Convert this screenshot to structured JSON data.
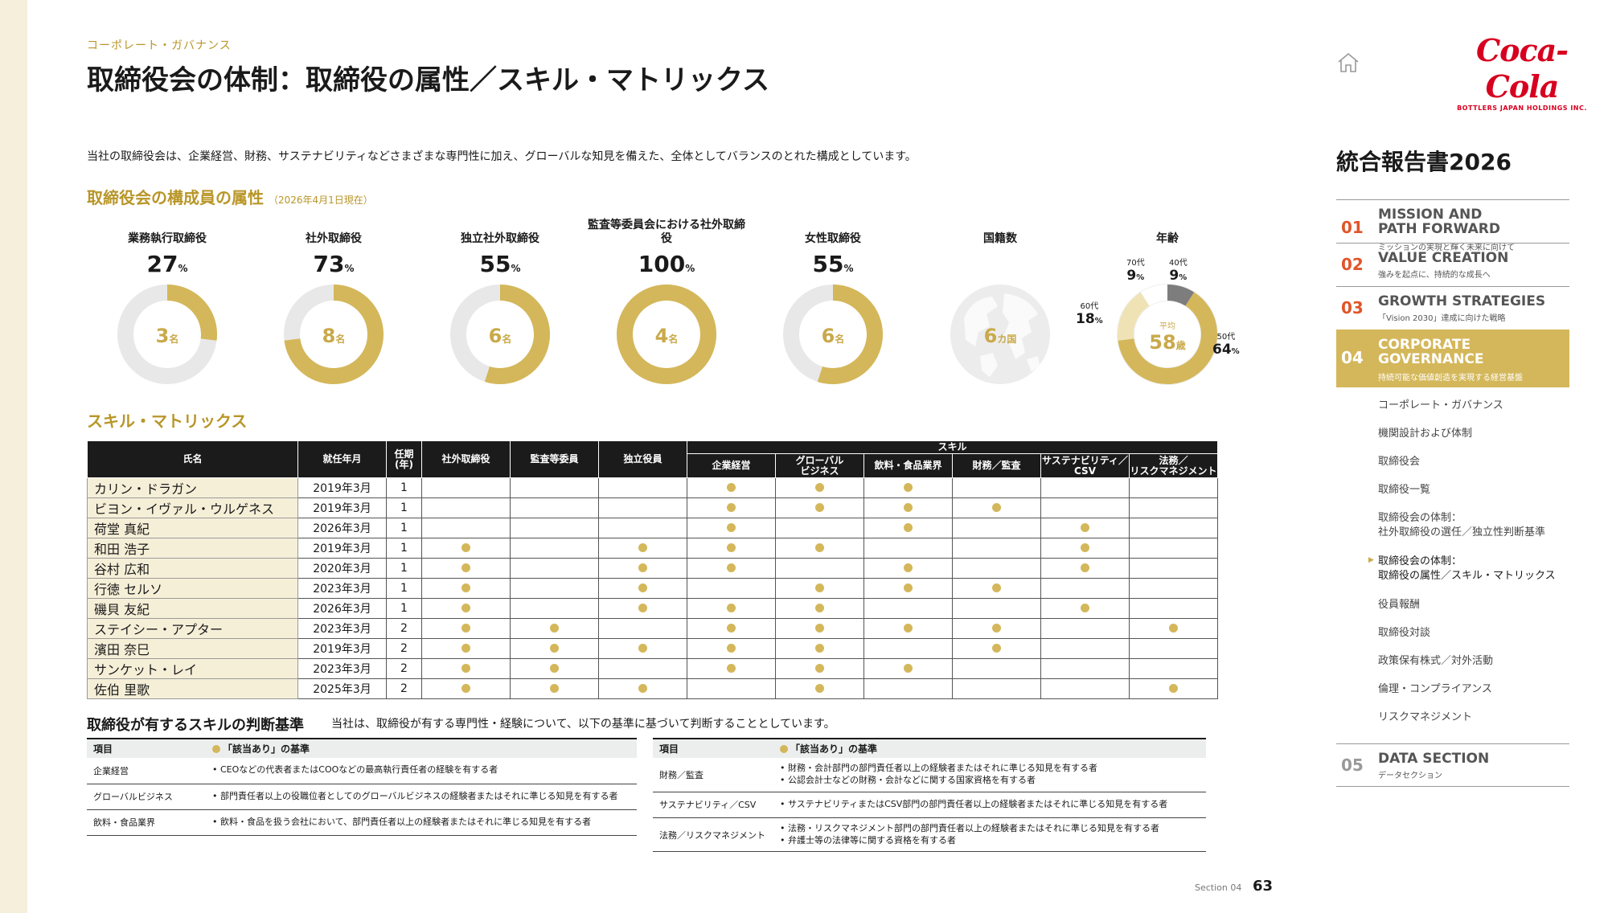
{
  "header": {
    "section_label": "コーポレート・ガバナンス",
    "title": "取締役会の体制：取締役の属性／スキル・マトリックス",
    "intro": "当社の取締役会は、企業経営、財務、サステナビリティなどさまざまな専門性に加え、グローバルな知見を備えた、全体としてバランスのとれた構成としています。"
  },
  "attributes": {
    "title": "取締役会の構成員の属性",
    "as_of": "（2026年4月1日現在）",
    "items": [
      {
        "label": "業務執行取締役",
        "percent": "27",
        "count": "3",
        "unit": "名",
        "fraction": 0.27
      },
      {
        "label": "社外取締役",
        "percent": "73",
        "count": "8",
        "unit": "名",
        "fraction": 0.73
      },
      {
        "label": "独立社外取締役",
        "percent": "55",
        "count": "6",
        "unit": "名",
        "fraction": 0.55
      },
      {
        "label": "監査等委員会における社外取締役",
        "percent": "100",
        "count": "4",
        "unit": "名",
        "fraction": 1.0
      },
      {
        "label": "女性取締役",
        "percent": "55",
        "count": "6",
        "unit": "名",
        "fraction": 0.55
      }
    ],
    "pct_unit": "%",
    "nationality": {
      "label": "国籍数",
      "count": "6",
      "unit": "カ国"
    },
    "age": {
      "label": "年齢",
      "avg_label": "平均",
      "avg": "58",
      "avg_unit": "歳",
      "groups": [
        {
          "name": "40代",
          "value": "9",
          "fraction": 0.09,
          "color": "#7d7d7d"
        },
        {
          "name": "50代",
          "value": "64",
          "fraction": 0.64,
          "color": "#d4b75a"
        },
        {
          "name": "60代",
          "value": "18",
          "fraction": 0.18,
          "color": "#efe3b6"
        },
        {
          "name": "70代",
          "value": "9",
          "fraction": 0.09,
          "color": "#ffffff"
        }
      ]
    }
  },
  "skill_matrix": {
    "title": "スキル・マトリックス",
    "headers": {
      "name": "氏名",
      "date": "就任年月",
      "tenure": "任期\n(年)",
      "outside": "社外取締役",
      "audit": "監査等委員",
      "independent": "独立役員",
      "skill_group": "スキル",
      "skills": [
        "企業経営",
        "グローバル\nビジネス",
        "飲料・食品業界",
        "財務／監査",
        "サステナビリティ／\nCSV",
        "法務／\nリスクマネジメント"
      ]
    },
    "rows": [
      {
        "name": "カリン・ドラガン",
        "date": "2019年3月",
        "tenure": "1",
        "marks": [
          0,
          0,
          0,
          1,
          1,
          1,
          0,
          0,
          0
        ]
      },
      {
        "name": "ビヨン・イヴァル・ウルゲネス",
        "date": "2019年3月",
        "tenure": "1",
        "marks": [
          0,
          0,
          0,
          1,
          1,
          1,
          1,
          0,
          0
        ]
      },
      {
        "name": "荷堂 真紀",
        "date": "2026年3月",
        "tenure": "1",
        "marks": [
          0,
          0,
          0,
          1,
          0,
          1,
          0,
          1,
          0
        ]
      },
      {
        "name": "和田 浩子",
        "date": "2019年3月",
        "tenure": "1",
        "marks": [
          1,
          0,
          1,
          1,
          1,
          0,
          0,
          1,
          0
        ]
      },
      {
        "name": "谷村 広和",
        "date": "2020年3月",
        "tenure": "1",
        "marks": [
          1,
          0,
          1,
          1,
          0,
          1,
          0,
          1,
          0
        ]
      },
      {
        "name": "行徳 セルソ",
        "date": "2023年3月",
        "tenure": "1",
        "marks": [
          1,
          0,
          1,
          0,
          1,
          1,
          1,
          0,
          0
        ]
      },
      {
        "name": "磯貝 友紀",
        "date": "2026年3月",
        "tenure": "1",
        "marks": [
          1,
          0,
          1,
          1,
          1,
          0,
          0,
          1,
          0
        ]
      },
      {
        "name": "ステイシー・アプター",
        "date": "2023年3月",
        "tenure": "2",
        "marks": [
          1,
          1,
          0,
          1,
          1,
          1,
          1,
          0,
          1
        ]
      },
      {
        "name": "濱田 奈巳",
        "date": "2019年3月",
        "tenure": "2",
        "marks": [
          1,
          1,
          1,
          1,
          1,
          0,
          1,
          0,
          0
        ]
      },
      {
        "name": "サンケット・レイ",
        "date": "2023年3月",
        "tenure": "2",
        "marks": [
          1,
          1,
          0,
          1,
          1,
          1,
          0,
          0,
          0
        ]
      },
      {
        "name": "佐伯 里歌",
        "date": "2025年3月",
        "tenure": "2",
        "marks": [
          1,
          1,
          1,
          0,
          1,
          0,
          0,
          0,
          1
        ]
      }
    ]
  },
  "criteria": {
    "title": "取締役が有するスキルの判断基準",
    "desc": "当社は、取締役が有する専門性・経験について、以下の基準に基づいて判断することとしています。",
    "col_item": "項目",
    "col_basis": "「該当あり」の基準",
    "left": [
      {
        "item": "企業経営",
        "basis": [
          "• CEOなどの代表者またはCOOなどの最高執行責任者の経験を有する者"
        ]
      },
      {
        "item": "グローバルビジネス",
        "basis": [
          "• 部門責任者以上の役職位者としてのグローバルビジネスの経験者またはそれに準じる知見を有する者"
        ]
      },
      {
        "item": "飲料・食品業界",
        "basis": [
          "• 飲料・食品を扱う会社において、部門責任者以上の経験者またはそれに準じる知見を有する者"
        ]
      }
    ],
    "right": [
      {
        "item": "財務／監査",
        "basis": [
          "• 財務・会計部門の部門責任者以上の経験者またはそれに準じる知見を有する者",
          "• 公認会計士などの財務・会計などに関する国家資格を有する者"
        ]
      },
      {
        "item": "サステナビリティ／CSV",
        "basis": [
          "• サステナビリティまたはCSV部門の部門責任者以上の経験者またはそれに準じる知見を有する者"
        ]
      },
      {
        "item": "法務／リスクマネジメント",
        "basis": [
          "• 法務・リスクマネジメント部門の部門責任者以上の経験者またはそれに準じる知見を有する者",
          "• 弁護士等の法律等に関する資格を有する者"
        ]
      }
    ]
  },
  "footer": {
    "section": "Section 04",
    "page": "63"
  },
  "sidebar": {
    "logo_text": "Coca-Cola",
    "logo_sub": "BOTTLERS JAPAN HOLDINGS INC.",
    "report_title": "統合報告書2026",
    "sections": [
      {
        "num": "01",
        "title": "MISSION AND\nPATH FORWARD",
        "sub": "ミッションの実現と輝く未来に向けて",
        "active": false
      },
      {
        "num": "02",
        "title": "VALUE CREATION",
        "sub": "強みを起点に、持続的な成長へ",
        "active": false
      },
      {
        "num": "03",
        "title": "GROWTH STRATEGIES",
        "sub": "「Vision 2030」達成に向けた戦略",
        "active": false
      },
      {
        "num": "04",
        "title": "CORPORATE\nGOVERNANCE",
        "sub": "持続可能な価値創造を実現する経営基盤",
        "active": true
      }
    ],
    "subitems": [
      {
        "label": "コーポレート・ガバナンス",
        "current": false
      },
      {
        "label": "機関設計および体制",
        "current": false
      },
      {
        "label": "取締役会",
        "current": false
      },
      {
        "label": "取締役一覧",
        "current": false
      },
      {
        "label": "取締役会の体制：\n社外取締役の選任／独立性判断基準",
        "current": false
      },
      {
        "label": "取締役会の体制：\n取締役の属性／スキル・マトリックス",
        "current": true
      },
      {
        "label": "役員報酬",
        "current": false
      },
      {
        "label": "取締役対談",
        "current": false
      },
      {
        "label": "政策保有株式／対外活動",
        "current": false
      },
      {
        "label": "倫理・コンプライアンス",
        "current": false
      },
      {
        "label": "リスクマネジメント",
        "current": false
      }
    ],
    "last_section": {
      "num": "05",
      "title": "DATA SECTION",
      "sub": "データセクション"
    }
  }
}
